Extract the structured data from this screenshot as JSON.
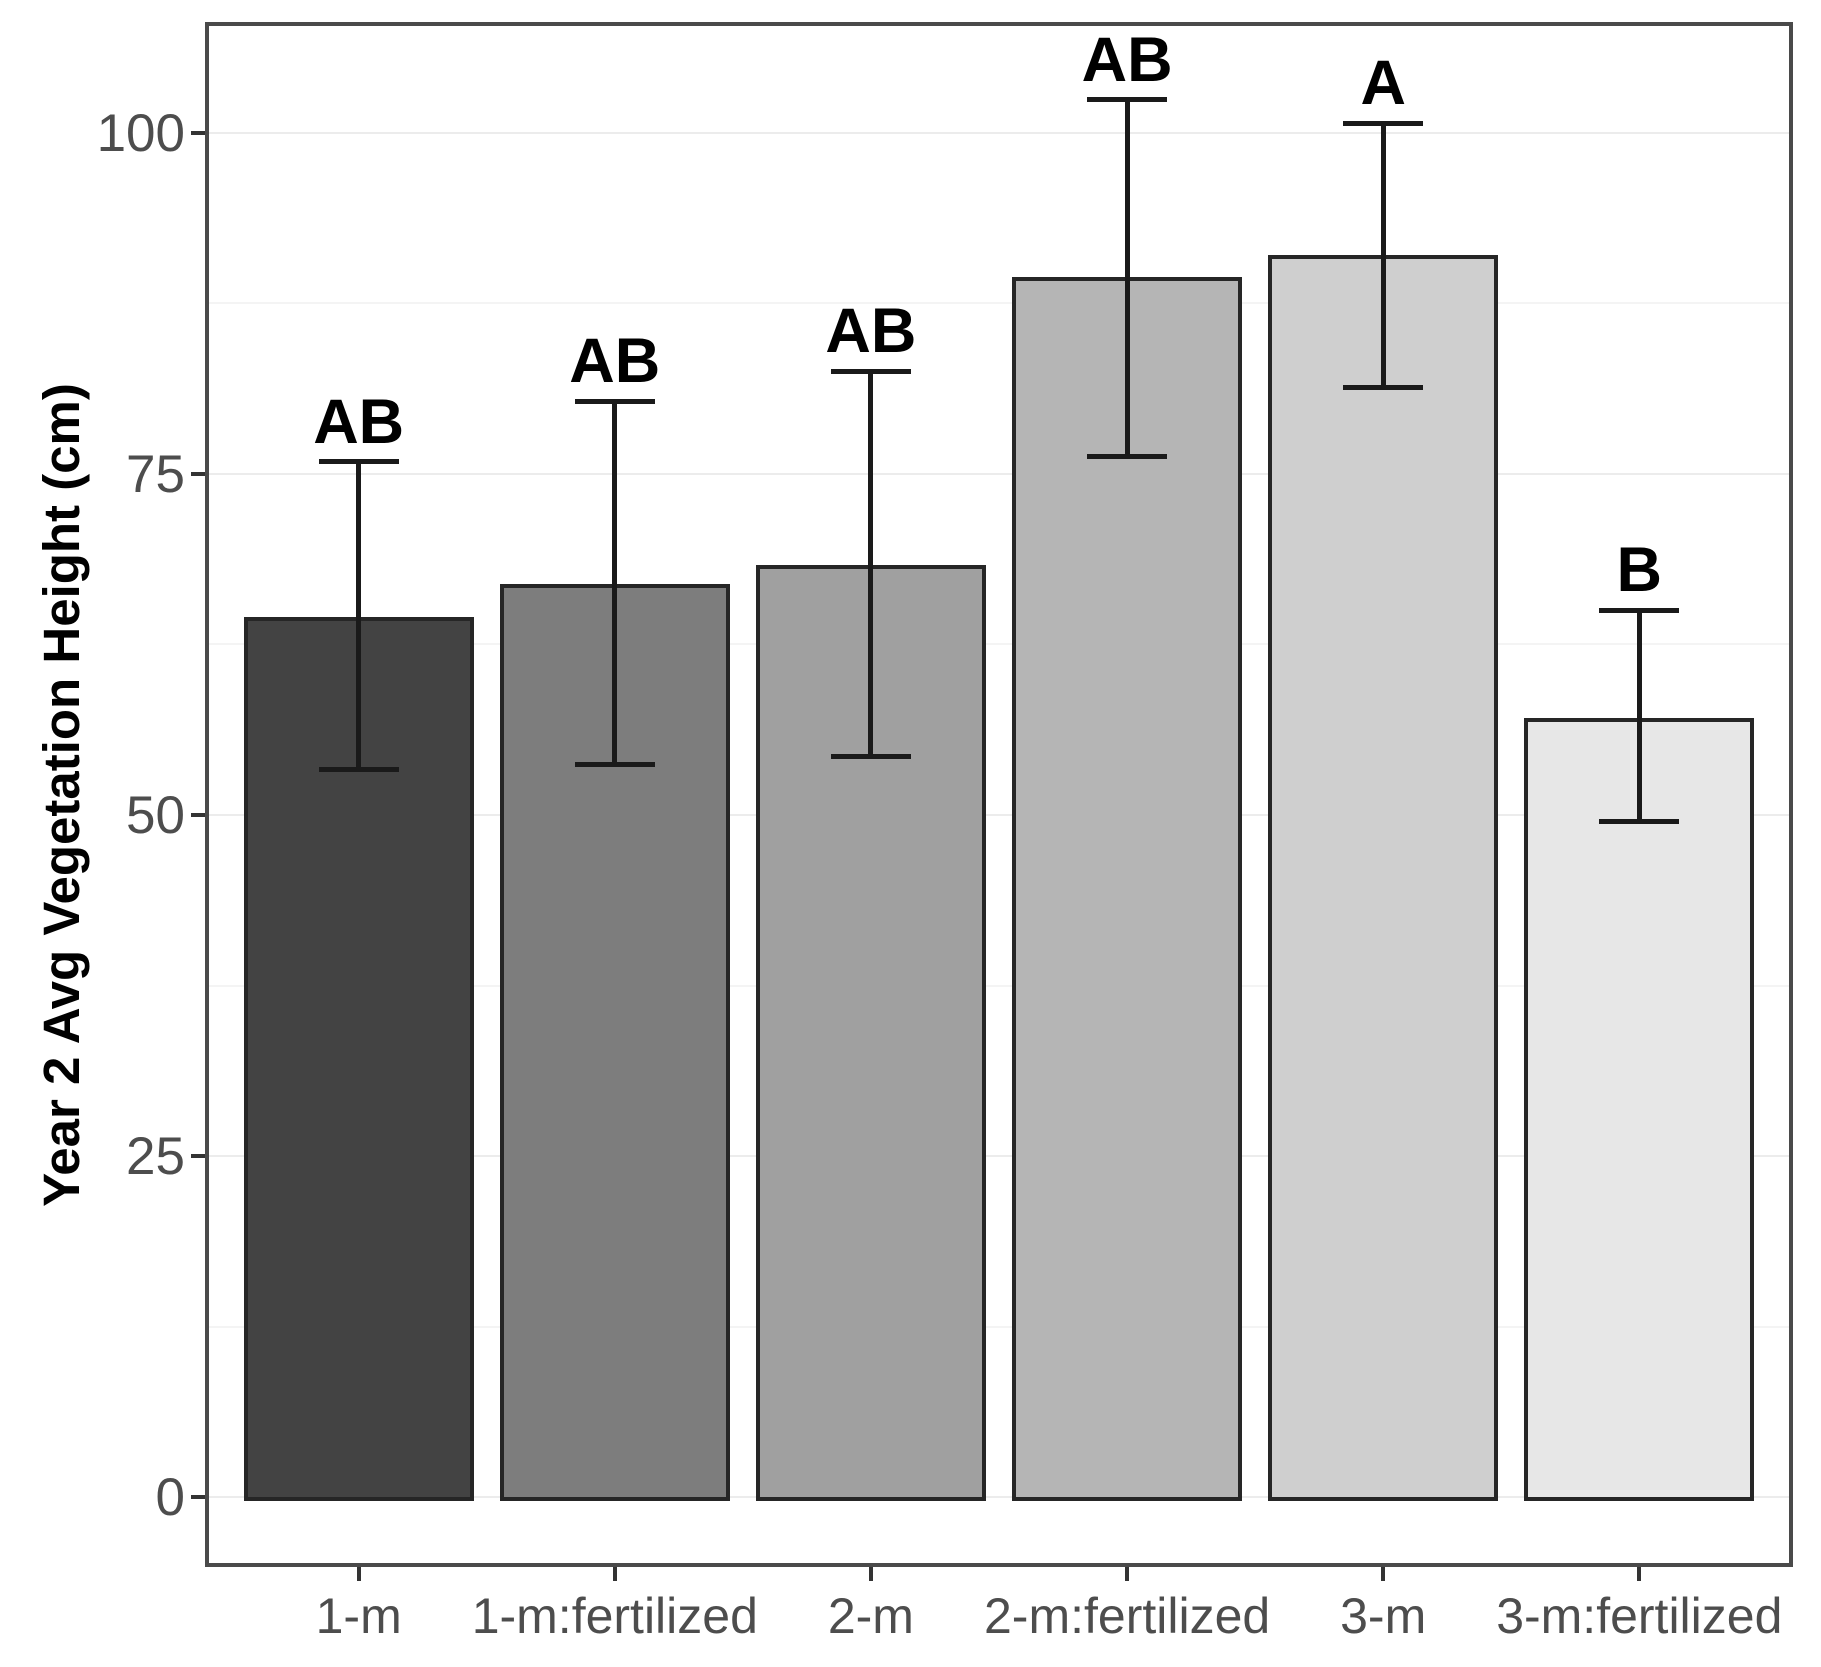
{
  "chart_data": {
    "type": "bar",
    "title": "",
    "xlabel": "",
    "ylabel": "Year 2 Avg Vegetation Height (cm)",
    "categories": [
      "1-m",
      "1-m:fertilized",
      "2-m",
      "2-m:fertilized",
      "3-m",
      "3-m:fertilized"
    ],
    "values": [
      64.5,
      66.9,
      68.3,
      89.4,
      91.0,
      57.1
    ],
    "error_low": [
      53.3,
      53.7,
      54.3,
      76.3,
      81.3,
      49.5
    ],
    "error_high": [
      75.9,
      80.3,
      82.5,
      102.4,
      100.7,
      65.0
    ],
    "sig_letters": [
      "AB",
      "AB",
      "AB",
      "AB",
      "A",
      "B"
    ],
    "y_ticks": [
      0,
      25,
      50,
      75,
      100
    ],
    "y_tick_labels": [
      "0",
      "25",
      "50",
      "75",
      "100"
    ],
    "y_minor_ticks": [
      12.5,
      37.5,
      62.5,
      87.5
    ],
    "ylim": [
      -5.1,
      108.1
    ],
    "grid": true,
    "legend": false,
    "bar_fill_colors": [
      "#434343",
      "#7d7d7d",
      "#a0a0a0",
      "#b5b5b5",
      "#cfcfcf",
      "#e7e7e7"
    ],
    "colors": {
      "bar_border": "#262626",
      "errorbar": "#1a1a1a",
      "grid_major": "#ececec",
      "grid_minor": "#f4f4f4",
      "panel_border": "#4a4a4a",
      "tick_mark": "#333333",
      "tick_label": "#4d4d4d",
      "axis_title": "#000000",
      "sig_letter": "#000000",
      "background": "#ffffff"
    }
  }
}
